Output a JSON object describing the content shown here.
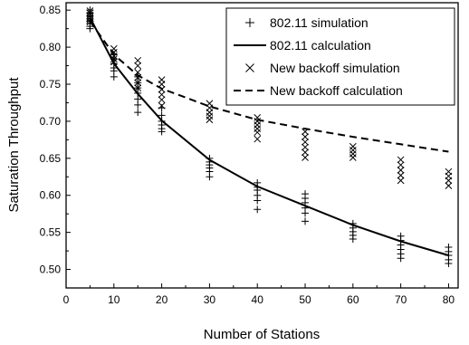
{
  "chart_data": {
    "type": "line",
    "xlabel": "Number of Stations",
    "ylabel": "Saturation Throughput",
    "xlim": [
      0,
      82
    ],
    "ylim": [
      0.475,
      0.86
    ],
    "x_ticks": [
      0,
      10,
      20,
      30,
      40,
      50,
      60,
      70,
      80
    ],
    "y_ticks": [
      0.5,
      0.55,
      0.6,
      0.65,
      0.7,
      0.75,
      0.8,
      0.85
    ],
    "legend_position": "top-right",
    "series": [
      {
        "name": "802.11 simulation",
        "marker": "plus",
        "points": [
          [
            5,
            0.85
          ],
          [
            5,
            0.846
          ],
          [
            5,
            0.842
          ],
          [
            5,
            0.838
          ],
          [
            5,
            0.835
          ],
          [
            5,
            0.832
          ],
          [
            5,
            0.828
          ],
          [
            5,
            0.825
          ],
          [
            10,
            0.79
          ],
          [
            10,
            0.784
          ],
          [
            10,
            0.778
          ],
          [
            10,
            0.772
          ],
          [
            10,
            0.768
          ],
          [
            10,
            0.76
          ],
          [
            15,
            0.76
          ],
          [
            15,
            0.752
          ],
          [
            15,
            0.745
          ],
          [
            15,
            0.738
          ],
          [
            15,
            0.73
          ],
          [
            15,
            0.722
          ],
          [
            15,
            0.712
          ],
          [
            20,
            0.718
          ],
          [
            20,
            0.708
          ],
          [
            20,
            0.7
          ],
          [
            20,
            0.695
          ],
          [
            20,
            0.69
          ],
          [
            20,
            0.686
          ],
          [
            30,
            0.65
          ],
          [
            30,
            0.645
          ],
          [
            30,
            0.641
          ],
          [
            30,
            0.637
          ],
          [
            30,
            0.632
          ],
          [
            30,
            0.625
          ],
          [
            40,
            0.617
          ],
          [
            40,
            0.611
          ],
          [
            40,
            0.607
          ],
          [
            40,
            0.6
          ],
          [
            40,
            0.593
          ],
          [
            40,
            0.581
          ],
          [
            50,
            0.602
          ],
          [
            50,
            0.596
          ],
          [
            50,
            0.59
          ],
          [
            50,
            0.583
          ],
          [
            50,
            0.576
          ],
          [
            50,
            0.565
          ],
          [
            60,
            0.562
          ],
          [
            60,
            0.556
          ],
          [
            60,
            0.551
          ],
          [
            60,
            0.546
          ],
          [
            60,
            0.541
          ],
          [
            70,
            0.545
          ],
          [
            70,
            0.539
          ],
          [
            70,
            0.533
          ],
          [
            70,
            0.527
          ],
          [
            70,
            0.521
          ],
          [
            70,
            0.515
          ],
          [
            80,
            0.53
          ],
          [
            80,
            0.524
          ],
          [
            80,
            0.519
          ],
          [
            80,
            0.513
          ],
          [
            80,
            0.508
          ]
        ]
      },
      {
        "name": "802.11 calculation",
        "style": "solid",
        "points": [
          [
            5,
            0.84
          ],
          [
            10,
            0.778
          ],
          [
            15,
            0.737
          ],
          [
            20,
            0.701
          ],
          [
            30,
            0.648
          ],
          [
            40,
            0.612
          ],
          [
            50,
            0.586
          ],
          [
            60,
            0.56
          ],
          [
            70,
            0.538
          ],
          [
            80,
            0.519
          ]
        ]
      },
      {
        "name": "New backoff simulation",
        "marker": "x",
        "points": [
          [
            5,
            0.849
          ],
          [
            5,
            0.846
          ],
          [
            5,
            0.843
          ],
          [
            5,
            0.84
          ],
          [
            5,
            0.837
          ],
          [
            5,
            0.834
          ],
          [
            10,
            0.798
          ],
          [
            10,
            0.793
          ],
          [
            10,
            0.788
          ],
          [
            10,
            0.784
          ],
          [
            10,
            0.78
          ],
          [
            15,
            0.782
          ],
          [
            15,
            0.775
          ],
          [
            15,
            0.766
          ],
          [
            15,
            0.759
          ],
          [
            15,
            0.752
          ],
          [
            15,
            0.745
          ],
          [
            20,
            0.756
          ],
          [
            20,
            0.75
          ],
          [
            20,
            0.743
          ],
          [
            20,
            0.736
          ],
          [
            20,
            0.729
          ],
          [
            20,
            0.721
          ],
          [
            30,
            0.724
          ],
          [
            30,
            0.718
          ],
          [
            30,
            0.712
          ],
          [
            30,
            0.707
          ],
          [
            30,
            0.702
          ],
          [
            40,
            0.705
          ],
          [
            40,
            0.7
          ],
          [
            40,
            0.695
          ],
          [
            40,
            0.69
          ],
          [
            40,
            0.685
          ],
          [
            40,
            0.676
          ],
          [
            50,
            0.686
          ],
          [
            50,
            0.679
          ],
          [
            50,
            0.672
          ],
          [
            50,
            0.665
          ],
          [
            50,
            0.658
          ],
          [
            50,
            0.651
          ],
          [
            60,
            0.666
          ],
          [
            60,
            0.661
          ],
          [
            60,
            0.656
          ],
          [
            60,
            0.651
          ],
          [
            70,
            0.648
          ],
          [
            70,
            0.641
          ],
          [
            70,
            0.634
          ],
          [
            70,
            0.627
          ],
          [
            70,
            0.62
          ],
          [
            80,
            0.632
          ],
          [
            80,
            0.626
          ],
          [
            80,
            0.62
          ],
          [
            80,
            0.613
          ]
        ]
      },
      {
        "name": "New backoff calculation",
        "style": "dashed",
        "points": [
          [
            5,
            0.835
          ],
          [
            10,
            0.79
          ],
          [
            15,
            0.762
          ],
          [
            20,
            0.744
          ],
          [
            30,
            0.72
          ],
          [
            40,
            0.702
          ],
          [
            50,
            0.69
          ],
          [
            60,
            0.679
          ],
          [
            70,
            0.669
          ],
          [
            80,
            0.659
          ]
        ]
      }
    ]
  }
}
